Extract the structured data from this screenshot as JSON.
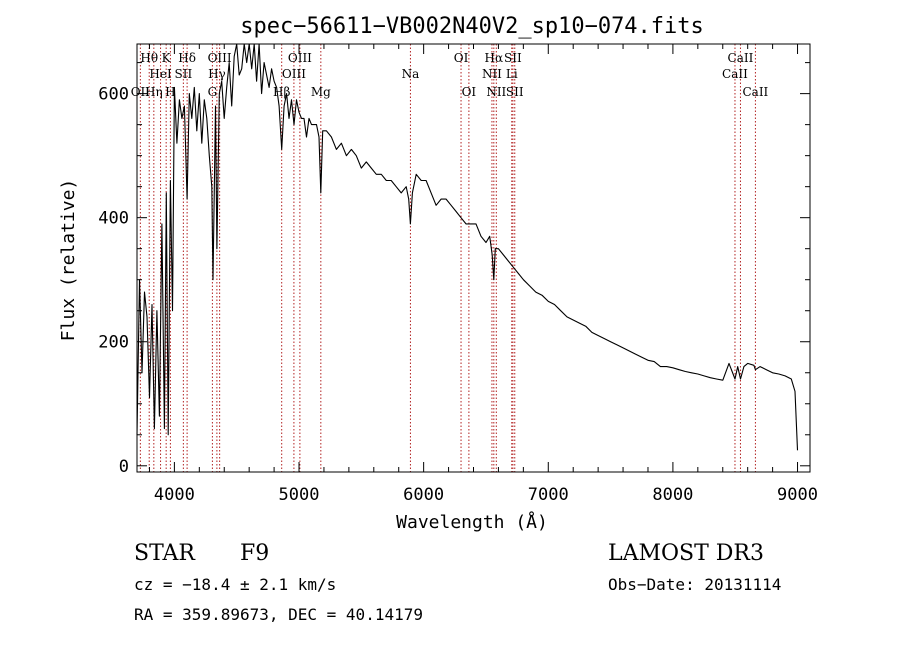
{
  "chart_data": {
    "type": "line",
    "title": "spec−56611−VB002N40V2_sp10−074.fits",
    "xlabel": "Wavelength (Å)",
    "ylabel": "Flux (relative)",
    "xlim": [
      3700,
      9100
    ],
    "ylim": [
      -10,
      680
    ],
    "xticks": [
      4000,
      5000,
      6000,
      7000,
      8000,
      9000
    ],
    "yticks": [
      0,
      200,
      400,
      600
    ],
    "line_colors": {
      "spectrum": "#000000",
      "lines": "#b22222"
    },
    "spectral_lines": [
      {
        "name": "OII",
        "wavelength": 3727,
        "row": 3
      },
      {
        "name": "Hθ",
        "wavelength": 3798,
        "row": 1
      },
      {
        "name": "Hη",
        "wavelength": 3835,
        "row": 3
      },
      {
        "name": "HeI",
        "wavelength": 3889,
        "row": 2
      },
      {
        "name": "K",
        "wavelength": 3934,
        "row": 1
      },
      {
        "name": "H",
        "wavelength": 3968,
        "row": 3
      },
      {
        "name": "SII",
        "wavelength": 4072,
        "row": 2
      },
      {
        "name": "Hδ",
        "wavelength": 4102,
        "row": 1
      },
      {
        "name": "G",
        "wavelength": 4305,
        "row": 3
      },
      {
        "name": "Hγ",
        "wavelength": 4341,
        "row": 2
      },
      {
        "name": "OIII",
        "wavelength": 4363,
        "row": 1
      },
      {
        "name": "Hβ",
        "wavelength": 4861,
        "row": 3
      },
      {
        "name": "OIII",
        "wavelength": 4959,
        "row": 2
      },
      {
        "name": "OIII",
        "wavelength": 5007,
        "row": 1
      },
      {
        "name": "Mg",
        "wavelength": 5175,
        "row": 3
      },
      {
        "name": "Na",
        "wavelength": 5894,
        "row": 2
      },
      {
        "name": "OI",
        "wavelength": 6300,
        "row": 1
      },
      {
        "name": "OI",
        "wavelength": 6363,
        "row": 3
      },
      {
        "name": "NII",
        "wavelength": 6548,
        "row": 2
      },
      {
        "name": "Hα",
        "wavelength": 6563,
        "row": 1
      },
      {
        "name": "NII",
        "wavelength": 6583,
        "row": 3
      },
      {
        "name": "Li",
        "wavelength": 6707,
        "row": 2
      },
      {
        "name": "SII",
        "wavelength": 6716,
        "row": 1
      },
      {
        "name": "SII",
        "wavelength": 6731,
        "row": 3
      },
      {
        "name": "CaII",
        "wavelength": 8498,
        "row": 2
      },
      {
        "name": "CaII",
        "wavelength": 8542,
        "row": 1
      },
      {
        "name": "CaII",
        "wavelength": 8662,
        "row": 3
      }
    ],
    "spectrum": {
      "x": [
        3700,
        3720,
        3740,
        3760,
        3780,
        3800,
        3820,
        3840,
        3860,
        3880,
        3900,
        3920,
        3935,
        3950,
        3968,
        3985,
        4000,
        4020,
        4040,
        4060,
        4080,
        4102,
        4120,
        4140,
        4160,
        4180,
        4200,
        4220,
        4240,
        4260,
        4280,
        4300,
        4310,
        4330,
        4341,
        4360,
        4380,
        4400,
        4420,
        4440,
        4460,
        4480,
        4500,
        4520,
        4540,
        4560,
        4580,
        4600,
        4620,
        4640,
        4660,
        4680,
        4700,
        4720,
        4740,
        4760,
        4780,
        4800,
        4820,
        4840,
        4861,
        4880,
        4900,
        4920,
        4940,
        4960,
        4980,
        5000,
        5020,
        5040,
        5060,
        5080,
        5100,
        5120,
        5140,
        5160,
        5175,
        5190,
        5220,
        5260,
        5300,
        5340,
        5380,
        5420,
        5460,
        5500,
        5540,
        5580,
        5620,
        5660,
        5700,
        5740,
        5780,
        5820,
        5860,
        5880,
        5894,
        5910,
        5940,
        5980,
        6020,
        6060,
        6100,
        6140,
        6180,
        6220,
        6260,
        6300,
        6340,
        6380,
        6420,
        6460,
        6500,
        6530,
        6550,
        6563,
        6575,
        6600,
        6640,
        6680,
        6720,
        6760,
        6800,
        6850,
        6900,
        6950,
        7000,
        7050,
        7100,
        7150,
        7200,
        7250,
        7300,
        7350,
        7400,
        7450,
        7500,
        7550,
        7600,
        7650,
        7700,
        7750,
        7800,
        7850,
        7900,
        7950,
        8000,
        8050,
        8100,
        8150,
        8200,
        8250,
        8300,
        8350,
        8400,
        8450,
        8498,
        8520,
        8542,
        8570,
        8600,
        8650,
        8662,
        8700,
        8750,
        8800,
        8850,
        8900,
        8950,
        8980,
        9000
      ],
      "y": [
        50,
        300,
        150,
        280,
        240,
        110,
        260,
        60,
        250,
        80,
        390,
        60,
        440,
        50,
        460,
        250,
        610,
        520,
        590,
        560,
        580,
        430,
        600,
        560,
        610,
        540,
        600,
        520,
        590,
        560,
        500,
        450,
        300,
        580,
        350,
        600,
        620,
        560,
        610,
        650,
        580,
        660,
        690,
        630,
        640,
        700,
        650,
        690,
        640,
        700,
        620,
        680,
        600,
        650,
        630,
        610,
        640,
        620,
        610,
        580,
        510,
        580,
        600,
        560,
        590,
        550,
        590,
        570,
        560,
        560,
        530,
        560,
        550,
        550,
        550,
        530,
        440,
        540,
        540,
        530,
        510,
        520,
        500,
        510,
        500,
        480,
        490,
        480,
        470,
        470,
        460,
        460,
        450,
        440,
        450,
        430,
        390,
        440,
        470,
        460,
        460,
        440,
        420,
        430,
        430,
        420,
        410,
        400,
        390,
        390,
        390,
        370,
        360,
        370,
        340,
        300,
        350,
        350,
        340,
        330,
        320,
        310,
        300,
        290,
        280,
        275,
        265,
        260,
        250,
        240,
        235,
        230,
        225,
        215,
        210,
        205,
        200,
        195,
        190,
        185,
        180,
        175,
        170,
        168,
        160,
        160,
        158,
        155,
        152,
        150,
        148,
        145,
        142,
        140,
        138,
        165,
        140,
        160,
        140,
        160,
        165,
        162,
        155,
        160,
        155,
        150,
        148,
        145,
        140,
        120,
        25
      ]
    }
  },
  "annotations": {
    "object_type": "STAR",
    "subclass": "F9",
    "survey": "LAMOST DR3",
    "cz": "cz = −18.4 ± 2.1 km/s",
    "obs_date": "Obs−Date: 20131114",
    "coords": "RA = 359.89673, DEC =  40.14179"
  }
}
